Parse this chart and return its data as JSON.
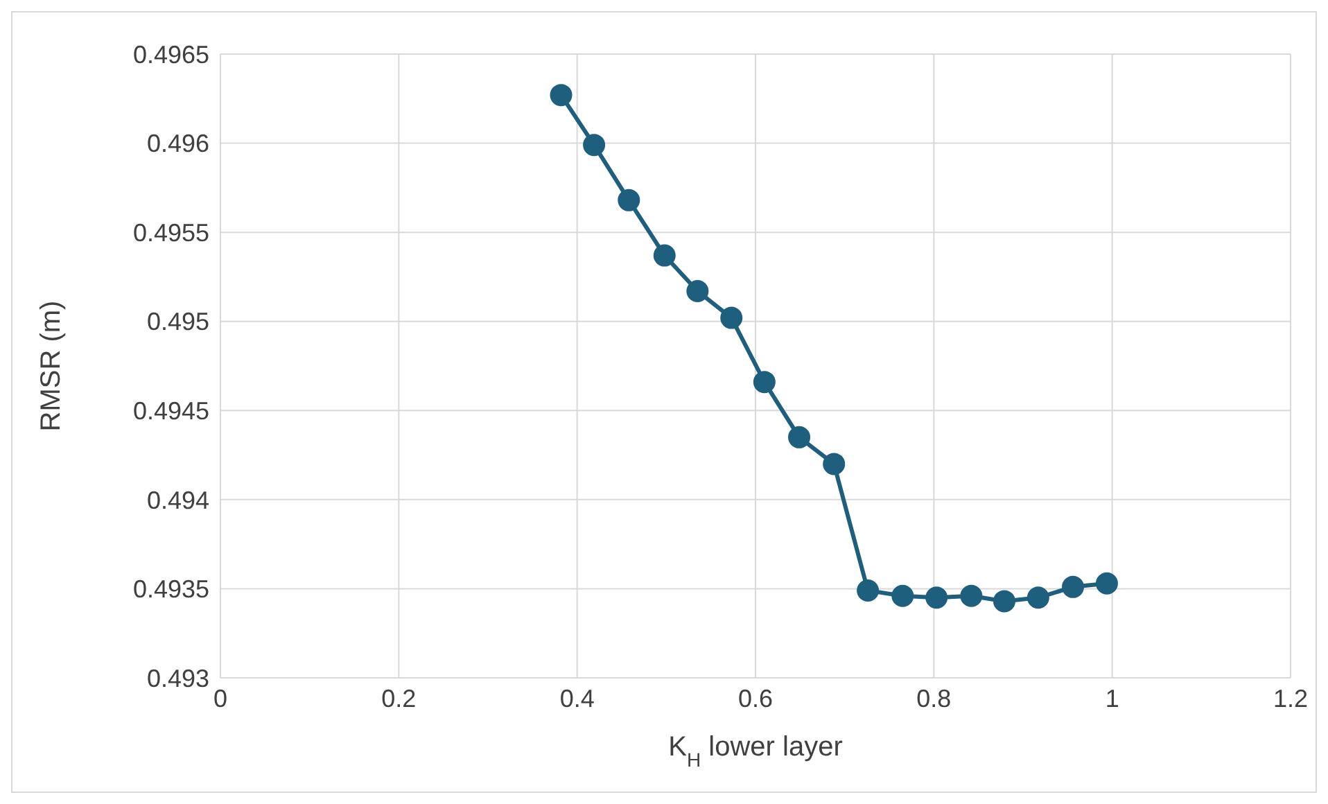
{
  "chart_data": {
    "type": "line",
    "xlabel": "K$_{H}$ lower layer",
    "ylabel": "RMSR (m)",
    "x": [
      0.382,
      0.419,
      0.458,
      0.498,
      0.535,
      0.573,
      0.61,
      0.649,
      0.688,
      0.726,
      0.765,
      0.803,
      0.842,
      0.879,
      0.917,
      0.956,
      0.994
    ],
    "series": [
      {
        "color": "#1f5f7e",
        "values": [
          0.49627,
          0.49599,
          0.49568,
          0.49537,
          0.49517,
          0.49502,
          0.49466,
          0.49435,
          0.4942,
          0.49349,
          0.49346,
          0.49345,
          0.49346,
          0.49343,
          0.49345,
          0.49351,
          0.49353
        ]
      }
    ],
    "xlim": [
      0,
      1.2
    ],
    "xticks": [
      0,
      0.2,
      0.4,
      0.6,
      0.8,
      1,
      1.2
    ],
    "ylim": [
      0.493,
      0.4965
    ],
    "yticks": [
      0.493,
      0.4935,
      0.494,
      0.4945,
      0.495,
      0.4955,
      0.496,
      0.4965
    ],
    "grid": true,
    "marker": "circle",
    "line_style": "solid"
  }
}
